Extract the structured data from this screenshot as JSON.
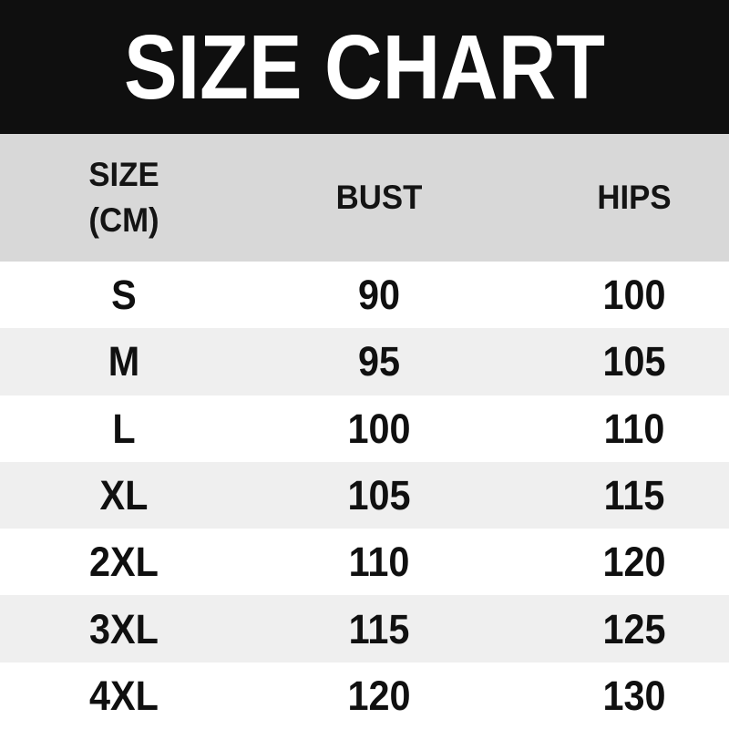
{
  "title": "SIZE CHART",
  "table": {
    "headers": {
      "size_line1": "SIZE",
      "size_line2": "(CM)",
      "bust": "BUST",
      "hips": "HIPS"
    },
    "rows": [
      {
        "size": "S",
        "bust": "90",
        "hips": "100"
      },
      {
        "size": "M",
        "bust": "95",
        "hips": "105"
      },
      {
        "size": "L",
        "bust": "100",
        "hips": "110"
      },
      {
        "size": "XL",
        "bust": "105",
        "hips": "115"
      },
      {
        "size": "2XL",
        "bust": "110",
        "hips": "120"
      },
      {
        "size": "3XL",
        "bust": "115",
        "hips": "125"
      },
      {
        "size": "4XL",
        "bust": "120",
        "hips": "130"
      }
    ]
  },
  "colors": {
    "banner_bg": "#0f0f0f",
    "title_text": "#ffffff",
    "header_bg": "#d8d8d8",
    "row_bg": "#ffffff",
    "row_alt_bg": "#efefef",
    "text": "#101010"
  },
  "chart_data": {
    "type": "table",
    "title": "SIZE CHART",
    "columns": [
      "SIZE (CM)",
      "BUST",
      "HIPS"
    ],
    "rows": [
      [
        "S",
        90,
        100
      ],
      [
        "M",
        95,
        105
      ],
      [
        "L",
        100,
        110
      ],
      [
        "XL",
        105,
        115
      ],
      [
        "2XL",
        110,
        120
      ],
      [
        "3XL",
        115,
        125
      ],
      [
        "4XL",
        120,
        130
      ]
    ],
    "units": "cm",
    "layout": {
      "striped": true,
      "header_band": true,
      "title_band": "black"
    }
  }
}
